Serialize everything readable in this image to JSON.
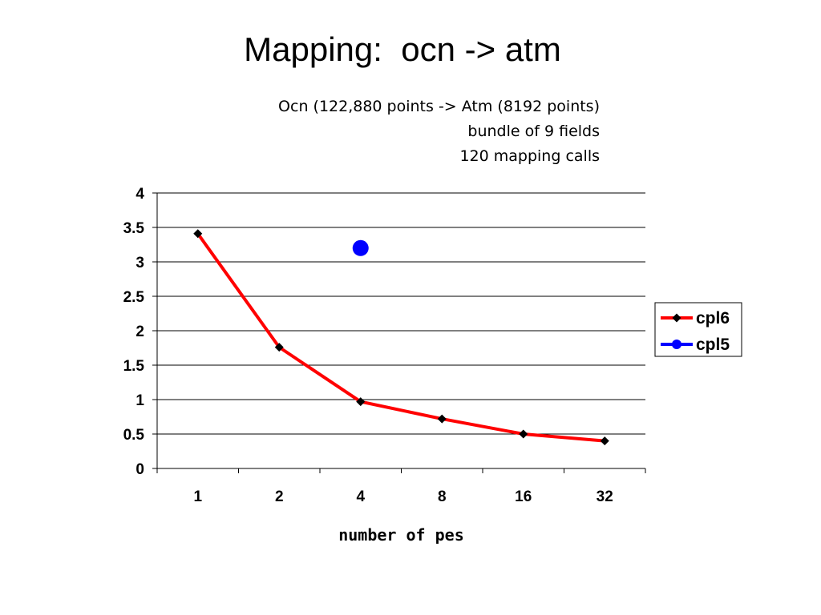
{
  "slide_title": "Mapping:  ocn -> atm",
  "subtitle_lines": [
    "Ocn (122,880 points -> Atm (8192 points)",
    "bundle of 9 fields",
    "120 mapping calls"
  ],
  "chart_data": {
    "type": "line",
    "categories": [
      "1",
      "2",
      "4",
      "8",
      "16",
      "32"
    ],
    "xlabel": "number of pes",
    "ylabel": "",
    "ylim": [
      0,
      4
    ],
    "yticks": [
      "0",
      "0.5",
      "1",
      "1.5",
      "2",
      "2.5",
      "3",
      "3.5",
      "4"
    ],
    "grid": true,
    "legend_position": "right",
    "series": [
      {
        "name": "cpl6",
        "values": [
          3.41,
          1.76,
          0.97,
          0.72,
          0.5,
          0.4
        ],
        "color": "#ff0000",
        "marker": "diamond",
        "marker_color": "#000000"
      },
      {
        "name": "cpl5",
        "values": [
          null,
          null,
          3.2,
          null,
          null,
          null
        ],
        "color": "#0000ff",
        "marker": "circle",
        "marker_color": "#0000ff"
      }
    ]
  }
}
